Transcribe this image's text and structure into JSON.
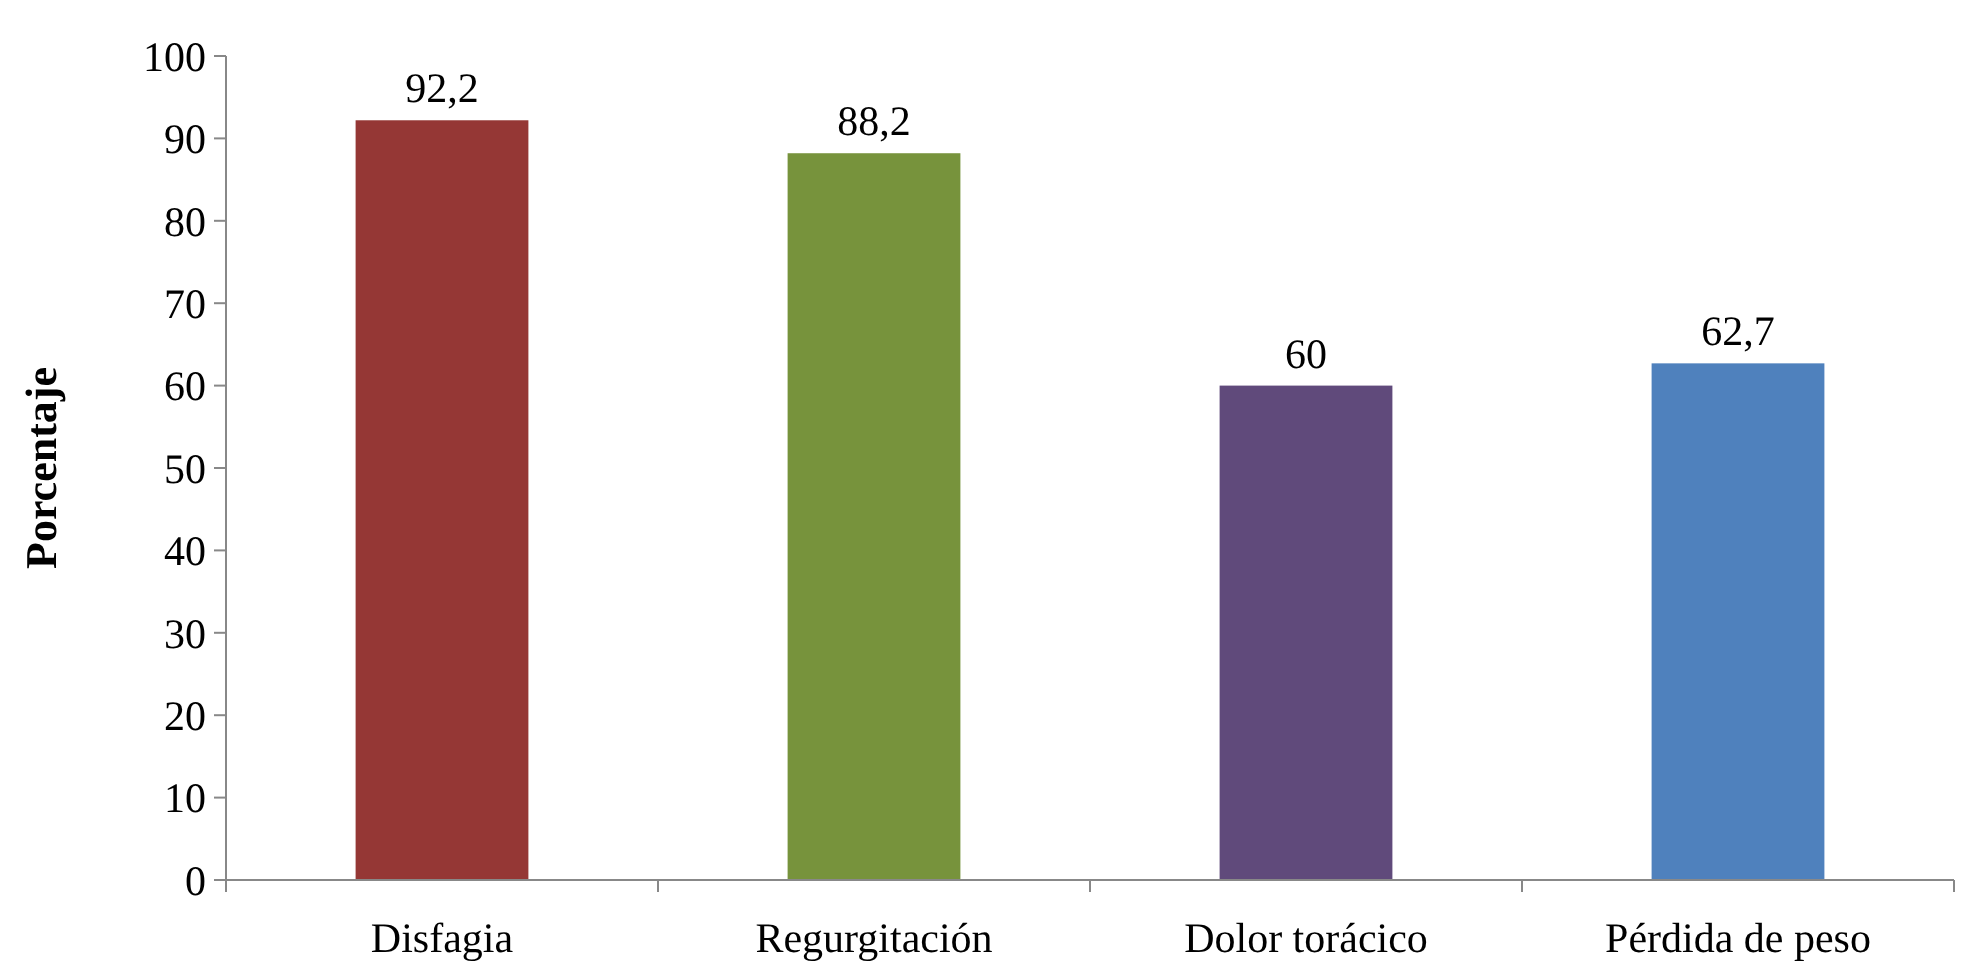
{
  "chart_data": {
    "type": "bar",
    "ylabel": "Porcentaje",
    "categories": [
      "Disfagia",
      "Regurgitación",
      "Dolor torácico",
      "Pérdida de peso"
    ],
    "values": [
      92.2,
      88.2,
      60,
      62.7
    ],
    "value_labels": [
      "92,2",
      "88,2",
      "60",
      "62,7"
    ],
    "colors": [
      "#953735",
      "#77933c",
      "#604a7b",
      "#4f81bd"
    ],
    "ylim": [
      0,
      100
    ],
    "yticks": [
      0,
      10,
      20,
      30,
      40,
      50,
      60,
      70,
      80,
      90,
      100
    ],
    "grid": false
  }
}
